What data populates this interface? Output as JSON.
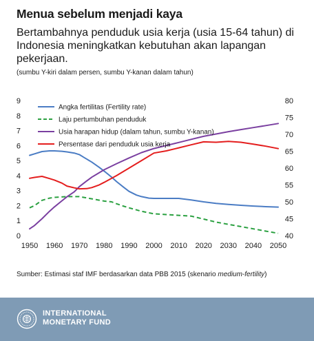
{
  "title": "Menua sebelum menjadi kaya",
  "subtitle": "Bertambahnya penduduk usia kerja (usia 15-64 tahun) di Indonesia meningkatkan kebutuhan akan lapangan pekerjaan.",
  "axis_note": "(sumbu Y-kiri dalam persen, sumbu Y-kanan dalam tahun)",
  "source_prefix": "Sumber: Estimasi staf IMF berdasarkan data PBB 2015 (skenario ",
  "source_italic": "medium-fertility",
  "source_suffix": ")",
  "footer": {
    "org_line1": "INTERNATIONAL",
    "org_line2": "MONETARY FUND",
    "logo_icon": "imf-seal-icon"
  },
  "colors": {
    "blue": "#4a7cc4",
    "green": "#2aa040",
    "purple": "#7a3fa0",
    "red": "#e41d1d",
    "footer": "#7f9bb5"
  },
  "chart_data": {
    "type": "line",
    "xlim": [
      1950,
      2050
    ],
    "x_ticks": [
      1950,
      1960,
      1970,
      1980,
      1990,
      2000,
      2010,
      2020,
      2030,
      2040,
      2050
    ],
    "ylim_left": [
      0,
      9
    ],
    "y_ticks_left": [
      0,
      1,
      2,
      3,
      4,
      5,
      6,
      7,
      8,
      9
    ],
    "ylim_right": [
      40,
      80
    ],
    "y_ticks_right": [
      40,
      45,
      50,
      55,
      60,
      65,
      70,
      75,
      80
    ],
    "grid": false,
    "legend_position": "top-left",
    "series": [
      {
        "name": "Angka fertilitas (Fertility rate)",
        "color": "#4a7cc4",
        "dash": "solid",
        "axis": "left",
        "x": [
          1950,
          1952,
          1955,
          1958,
          1960,
          1963,
          1965,
          1968,
          1970,
          1972,
          1975,
          1978,
          1980,
          1983,
          1985,
          1988,
          1990,
          1993,
          1995,
          1998,
          2000,
          2005,
          2010,
          2015,
          2020,
          2025,
          2030,
          2035,
          2040,
          2045,
          2050
        ],
        "y": [
          5.35,
          5.45,
          5.6,
          5.65,
          5.65,
          5.62,
          5.58,
          5.5,
          5.4,
          5.2,
          4.9,
          4.55,
          4.3,
          3.9,
          3.6,
          3.2,
          2.95,
          2.7,
          2.6,
          2.5,
          2.48,
          2.48,
          2.48,
          2.38,
          2.25,
          2.15,
          2.08,
          2.02,
          1.97,
          1.93,
          1.9
        ]
      },
      {
        "name": "Laju pertumbuhan penduduk",
        "color": "#2aa040",
        "dash": "dashed",
        "axis": "left",
        "x": [
          1950,
          1952,
          1955,
          1958,
          1960,
          1965,
          1970,
          1975,
          1980,
          1983,
          1985,
          1988,
          1990,
          1995,
          2000,
          2005,
          2010,
          2015,
          2020,
          2025,
          2030,
          2035,
          2040,
          2045,
          2050
        ],
        "y": [
          1.85,
          2.0,
          2.35,
          2.5,
          2.55,
          2.6,
          2.6,
          2.45,
          2.3,
          2.25,
          2.12,
          1.95,
          1.85,
          1.62,
          1.45,
          1.4,
          1.35,
          1.3,
          1.1,
          0.9,
          0.75,
          0.6,
          0.45,
          0.3,
          0.15
        ]
      },
      {
        "name": "Usia harapan hidup (dalam tahun, sumbu Y-kanan)",
        "color": "#7a3fa0",
        "dash": "solid",
        "axis": "right",
        "x": [
          1950,
          1952,
          1955,
          1958,
          1960,
          1963,
          1965,
          1968,
          1970,
          1973,
          1975,
          1980,
          1985,
          1990,
          1995,
          2000,
          2005,
          2010,
          2015,
          2020,
          2025,
          2030,
          2035,
          2040,
          2045,
          2050
        ],
        "y": [
          42,
          43,
          45,
          47.2,
          48.5,
          50.3,
          51.5,
          53,
          54.5,
          56.2,
          57.3,
          59.5,
          61.3,
          63,
          64.6,
          65.8,
          66.7,
          67.6,
          68.5,
          69.4,
          70.1,
          70.8,
          71.4,
          72,
          72.6,
          73.2
        ]
      },
      {
        "name": "Persentase dari penduduk usia kerja",
        "color": "#e41d1d",
        "dash": "solid",
        "axis": "left",
        "x": [
          1950,
          1952,
          1955,
          1958,
          1960,
          1963,
          1965,
          1968,
          1970,
          1973,
          1975,
          1978,
          1980,
          1985,
          1990,
          1995,
          2000,
          2005,
          2010,
          2015,
          2020,
          2025,
          2030,
          2035,
          2040,
          2045,
          2050
        ],
        "y": [
          3.82,
          3.88,
          3.95,
          3.8,
          3.7,
          3.5,
          3.3,
          3.18,
          3.12,
          3.13,
          3.2,
          3.38,
          3.55,
          4.0,
          4.5,
          5.0,
          5.5,
          5.65,
          5.85,
          6.05,
          6.25,
          6.22,
          6.28,
          6.22,
          6.1,
          5.96,
          5.8
        ]
      }
    ]
  }
}
